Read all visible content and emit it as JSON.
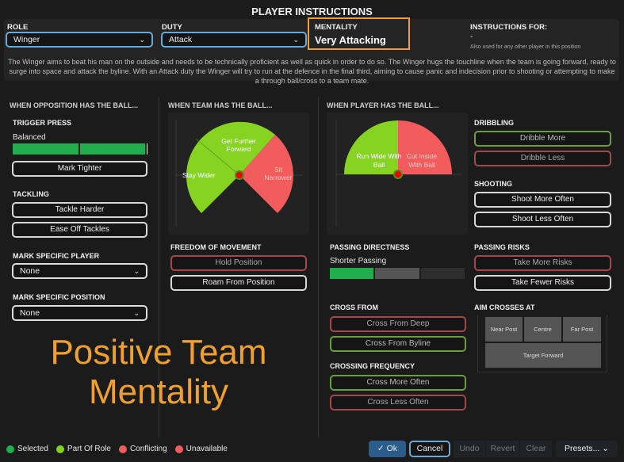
{
  "title": "PLAYER INSTRUCTIONS",
  "role": {
    "label": "ROLE",
    "value": "Winger"
  },
  "duty": {
    "label": "DUTY",
    "value": "Attack"
  },
  "mentality": {
    "label": "MENTALITY",
    "value": "Very Attacking",
    "highlight_color": "#f0a030"
  },
  "instructions_for": {
    "label": "INSTRUCTIONS FOR:",
    "value": "-",
    "note": "Also used for any other player in this position"
  },
  "description": "The Winger aims to beat his man on the outside and needs to be technically proficient as well as quick in order to do so. The Winger hugs the touchline when the team is going forward, ready to surge into space and attack the byline. With an Attack duty the Winger will try to run at the defence in the final third, aiming to cause panic and indecision prior to shooting or attempting to make a through ball/cross to a team mate.",
  "col1": {
    "header": "WHEN OPPOSITION HAS THE BALL...",
    "trigger_press": {
      "label": "TRIGGER PRESS",
      "value": "Balanced",
      "level": 0.67
    },
    "mark_tighter": "Mark Tighter",
    "tackling": {
      "label": "TACKLING",
      "options": [
        "Tackle Harder",
        "Ease Off Tackles"
      ]
    },
    "mark_player": {
      "label": "MARK SPECIFIC PLAYER",
      "value": "None"
    },
    "mark_position": {
      "label": "MARK SPECIFIC POSITION",
      "value": "None"
    }
  },
  "col2": {
    "header": "WHEN TEAM HAS THE BALL...",
    "wheel": {
      "forward": "Get Further Forward",
      "wider": "Stay Wider",
      "narrower": "Sit Narrower"
    },
    "freedom": {
      "label": "FREEDOM OF MOVEMENT",
      "options": [
        "Hold Position",
        "Roam From Position"
      ]
    }
  },
  "col3": {
    "header": "WHEN PLAYER HAS THE BALL...",
    "wheel": {
      "wide": "Run Wide With Ball",
      "inside": "Cut Inside With Ball"
    },
    "passing": {
      "label": "PASSING DIRECTNESS",
      "value": "Shorter Passing",
      "level": 0.33
    },
    "cross_from": {
      "label": "CROSS FROM",
      "options": [
        "Cross From Deep",
        "Cross From Byline"
      ]
    },
    "crossing_freq": {
      "label": "CROSSING FREQUENCY",
      "options": [
        "Cross More Often",
        "Cross Less Often"
      ]
    }
  },
  "col4": {
    "dribbling": {
      "label": "DRIBBLING",
      "options": [
        "Dribble More",
        "Dribble Less"
      ]
    },
    "shooting": {
      "label": "SHOOTING",
      "options": [
        "Shoot More Often",
        "Shoot Less Often"
      ]
    },
    "risks": {
      "label": "PASSING RISKS",
      "options": [
        "Take More Risks",
        "Take Fewer Risks"
      ]
    },
    "aim": {
      "label": "AIM CROSSES AT",
      "near": "Near Post",
      "centre": "Centre",
      "far": "Far Post",
      "target": "Target Forward"
    }
  },
  "watermark": [
    "Positive Team",
    "Mentality"
  ],
  "legend": [
    {
      "label": "Selected",
      "color": "#1fae4b"
    },
    {
      "label": "Part Of Role",
      "color": "#7ed321"
    },
    {
      "label": "Conflicting",
      "color": "#f25c5c"
    },
    {
      "label": "Unavailable",
      "color": "#f25c5c"
    }
  ],
  "footer": {
    "ok": "Ok",
    "cancel": "Cancel",
    "undo": "Undo",
    "revert": "Revert",
    "clear": "Clear",
    "presets": "Presets..."
  }
}
